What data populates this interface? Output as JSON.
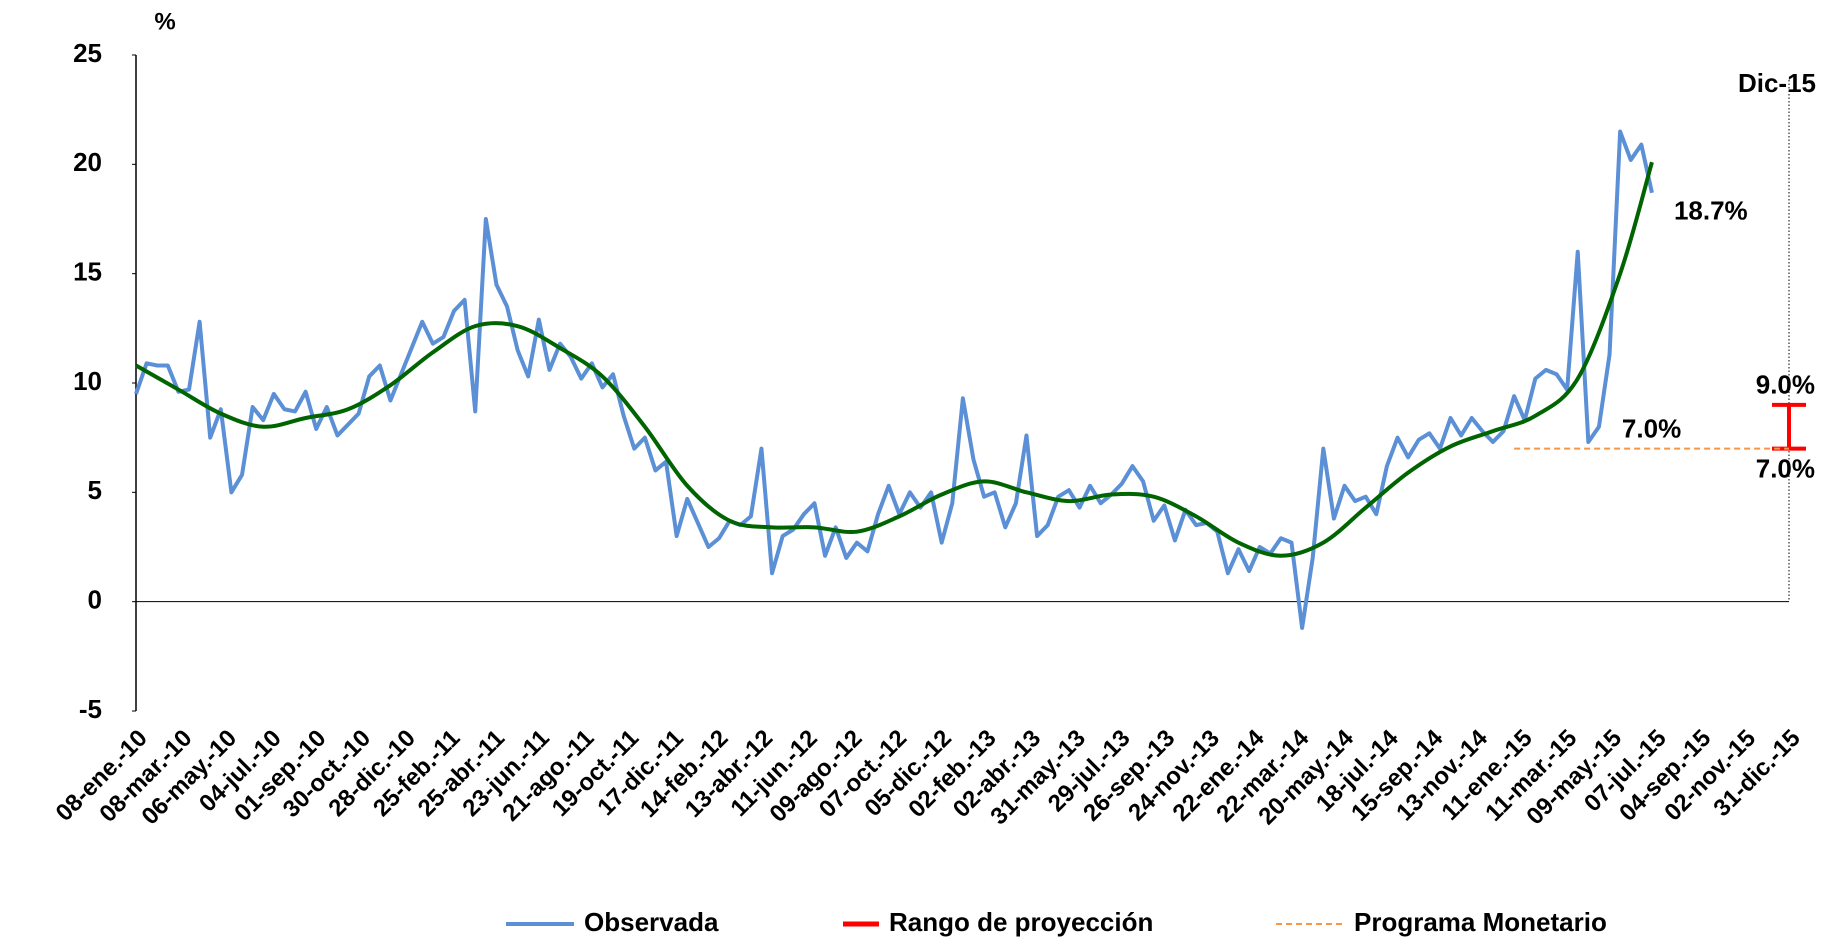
{
  "chart_data": {
    "type": "line",
    "y_label": "%",
    "ylim": [
      -5,
      25
    ],
    "yticks": [
      -5,
      0,
      5,
      10,
      15,
      20,
      25
    ],
    "xlim": [
      "2010-01-08",
      "2015-12-31"
    ],
    "xticks": [
      {
        "value": "2010-01-08",
        "label": "08-ene.-10"
      },
      {
        "value": "2010-03-08",
        "label": "08-mar.-10"
      },
      {
        "value": "2010-05-06",
        "label": "06-may.-10"
      },
      {
        "value": "2010-07-04",
        "label": "04-jul.-10"
      },
      {
        "value": "2010-09-01",
        "label": "01-sep.-10"
      },
      {
        "value": "2010-10-30",
        "label": "30-oct.-10"
      },
      {
        "value": "2010-12-28",
        "label": "28-dic.-10"
      },
      {
        "value": "2011-02-25",
        "label": "25-feb.-11"
      },
      {
        "value": "2011-04-25",
        "label": "25-abr.-11"
      },
      {
        "value": "2011-06-23",
        "label": "23-jun.-11"
      },
      {
        "value": "2011-08-21",
        "label": "21-ago.-11"
      },
      {
        "value": "2011-10-19",
        "label": "19-oct.-11"
      },
      {
        "value": "2011-12-17",
        "label": "17-dic.-11"
      },
      {
        "value": "2012-02-14",
        "label": "14-feb.-12"
      },
      {
        "value": "2012-04-13",
        "label": "13-abr.-12"
      },
      {
        "value": "2012-06-11",
        "label": "11-jun.-12"
      },
      {
        "value": "2012-08-09",
        "label": "09-ago.-12"
      },
      {
        "value": "2012-10-07",
        "label": "07-oct.-12"
      },
      {
        "value": "2012-12-05",
        "label": "05-dic.-12"
      },
      {
        "value": "2013-02-02",
        "label": "02-feb.-13"
      },
      {
        "value": "2013-04-02",
        "label": "02-abr.-13"
      },
      {
        "value": "2013-05-31",
        "label": "31-may.-13"
      },
      {
        "value": "2013-07-29",
        "label": "29-jul.-13"
      },
      {
        "value": "2013-09-26",
        "label": "26-sep.-13"
      },
      {
        "value": "2013-11-24",
        "label": "24-nov.-13"
      },
      {
        "value": "2014-01-22",
        "label": "22-ene.-14"
      },
      {
        "value": "2014-03-22",
        "label": "22-mar.-14"
      },
      {
        "value": "2014-05-20",
        "label": "20-may.-14"
      },
      {
        "value": "2014-07-18",
        "label": "18-jul.-14"
      },
      {
        "value": "2014-09-15",
        "label": "15-sep.-14"
      },
      {
        "value": "2014-11-13",
        "label": "13-nov.-14"
      },
      {
        "value": "2015-01-11",
        "label": "11-ene.-15"
      },
      {
        "value": "2015-03-11",
        "label": "11-mar.-15"
      },
      {
        "value": "2015-05-09",
        "label": "09-may.-15"
      },
      {
        "value": "2015-07-07",
        "label": "07-jul.-15"
      },
      {
        "value": "2015-09-04",
        "label": "04-sep.-15"
      },
      {
        "value": "2015-11-02",
        "label": "02-nov.-15"
      },
      {
        "value": "2015-12-31",
        "label": "31-dic.-15"
      }
    ],
    "marker": {
      "x": "2015-12-31",
      "label": "Dic-15"
    },
    "series": [
      {
        "name": "Observada",
        "type": "line",
        "color": "#5b8fd6",
        "end_label": "18.7%",
        "x": [
          "2010-01-08",
          "2010-01-22",
          "2010-02-05",
          "2010-02-19",
          "2010-03-05",
          "2010-03-19",
          "2010-04-02",
          "2010-04-16",
          "2010-04-30",
          "2010-05-14",
          "2010-05-28",
          "2010-06-11",
          "2010-06-25",
          "2010-07-09",
          "2010-07-23",
          "2010-08-06",
          "2010-08-20",
          "2010-09-03",
          "2010-09-17",
          "2010-10-01",
          "2010-10-15",
          "2010-10-29",
          "2010-11-12",
          "2010-11-26",
          "2010-12-10",
          "2010-12-24",
          "2011-01-07",
          "2011-01-21",
          "2011-02-04",
          "2011-02-18",
          "2011-03-04",
          "2011-03-18",
          "2011-04-01",
          "2011-04-15",
          "2011-04-29",
          "2011-05-13",
          "2011-05-27",
          "2011-06-10",
          "2011-06-24",
          "2011-07-08",
          "2011-07-22",
          "2011-08-05",
          "2011-08-19",
          "2011-09-02",
          "2011-09-16",
          "2011-09-30",
          "2011-10-14",
          "2011-10-28",
          "2011-11-11",
          "2011-11-25",
          "2011-12-09",
          "2011-12-23",
          "2012-01-06",
          "2012-01-20",
          "2012-02-03",
          "2012-02-17",
          "2012-03-02",
          "2012-03-16",
          "2012-03-30",
          "2012-04-13",
          "2012-04-27",
          "2012-05-11",
          "2012-05-25",
          "2012-06-08",
          "2012-06-22",
          "2012-07-06",
          "2012-07-20",
          "2012-08-03",
          "2012-08-17",
          "2012-08-31",
          "2012-09-14",
          "2012-09-28",
          "2012-10-12",
          "2012-10-26",
          "2012-11-09",
          "2012-11-23",
          "2012-12-07",
          "2012-12-21",
          "2013-01-04",
          "2013-01-18",
          "2013-02-01",
          "2013-02-15",
          "2013-03-01",
          "2013-03-15",
          "2013-03-29",
          "2013-04-12",
          "2013-04-26",
          "2013-05-10",
          "2013-05-24",
          "2013-06-07",
          "2013-06-21",
          "2013-07-05",
          "2013-07-19",
          "2013-08-02",
          "2013-08-16",
          "2013-08-30",
          "2013-09-13",
          "2013-09-27",
          "2013-10-11",
          "2013-10-25",
          "2013-11-08",
          "2013-11-22",
          "2013-12-06",
          "2013-12-20",
          "2014-01-03",
          "2014-01-17",
          "2014-01-31",
          "2014-02-14",
          "2014-02-28",
          "2014-03-14",
          "2014-03-28",
          "2014-04-11",
          "2014-04-25",
          "2014-05-09",
          "2014-05-23",
          "2014-06-06",
          "2014-06-20",
          "2014-07-04",
          "2014-07-18",
          "2014-08-01",
          "2014-08-15",
          "2014-08-29",
          "2014-09-12",
          "2014-09-26",
          "2014-10-10",
          "2014-10-24",
          "2014-11-07",
          "2014-11-21",
          "2014-12-05",
          "2014-12-19",
          "2015-01-02",
          "2015-01-16",
          "2015-01-30",
          "2015-02-13",
          "2015-02-27",
          "2015-03-13",
          "2015-03-27",
          "2015-04-10",
          "2015-04-24",
          "2015-05-08",
          "2015-05-22",
          "2015-06-05",
          "2015-06-19",
          "2015-07-03"
        ],
        "values": [
          9.5,
          10.9,
          10.8,
          10.8,
          9.6,
          9.7,
          12.8,
          7.5,
          8.8,
          5.0,
          5.8,
          8.9,
          8.3,
          9.5,
          8.8,
          8.7,
          9.6,
          7.9,
          8.9,
          7.6,
          8.1,
          8.6,
          10.3,
          10.8,
          9.2,
          10.4,
          11.6,
          12.8,
          11.8,
          12.1,
          13.3,
          13.8,
          8.7,
          17.5,
          14.5,
          13.5,
          11.5,
          10.3,
          12.9,
          10.6,
          11.8,
          11.2,
          10.2,
          10.9,
          9.8,
          10.4,
          8.5,
          7.0,
          7.5,
          6.0,
          6.4,
          3.0,
          4.7,
          3.6,
          2.5,
          2.9,
          3.7,
          3.5,
          3.9,
          7.0,
          1.3,
          3.0,
          3.3,
          4.0,
          4.5,
          2.1,
          3.4,
          2.0,
          2.7,
          2.3,
          4.0,
          5.3,
          4.0,
          5.0,
          4.3,
          5.0,
          2.7,
          4.5,
          9.3,
          6.5,
          4.8,
          5.0,
          3.4,
          4.5,
          7.6,
          3.0,
          3.5,
          4.8,
          5.1,
          4.3,
          5.3,
          4.5,
          4.9,
          5.4,
          6.2,
          5.5,
          3.7,
          4.4,
          2.8,
          4.2,
          3.5,
          3.6,
          3.2,
          1.3,
          2.4,
          1.4,
          2.5,
          2.2,
          2.9,
          2.7,
          -1.2,
          2.0,
          7.0,
          3.8,
          5.3,
          4.6,
          4.8,
          4.0,
          6.2,
          7.5,
          6.6,
          7.4,
          7.7,
          7.0,
          8.4,
          7.6,
          8.4,
          7.8,
          7.3,
          7.8,
          9.4,
          8.3,
          10.2,
          10.6,
          10.4,
          9.7,
          16.0,
          7.3,
          8.0,
          11.3,
          21.5,
          20.2,
          20.9,
          18.7
        ]
      },
      {
        "type": "trend",
        "color": "#006400",
        "x": [
          "2010-01-08",
          "2010-03-05",
          "2010-04-30",
          "2010-06-25",
          "2010-08-20",
          "2010-10-15",
          "2010-12-10",
          "2011-02-04",
          "2011-04-01",
          "2011-05-27",
          "2011-07-22",
          "2011-09-16",
          "2011-11-11",
          "2012-01-06",
          "2012-03-02",
          "2012-04-27",
          "2012-06-22",
          "2012-08-17",
          "2012-10-12",
          "2012-12-07",
          "2013-02-01",
          "2013-03-29",
          "2013-05-24",
          "2013-07-19",
          "2013-09-13",
          "2013-11-08",
          "2014-01-03",
          "2014-02-28",
          "2014-04-25",
          "2014-06-20",
          "2014-08-15",
          "2014-10-10",
          "2014-12-05",
          "2015-01-30",
          "2015-03-27",
          "2015-05-22",
          "2015-07-03"
        ],
        "values": [
          10.8,
          9.7,
          8.6,
          8.0,
          8.4,
          8.8,
          9.9,
          11.4,
          12.6,
          12.6,
          11.6,
          10.3,
          8.0,
          5.3,
          3.7,
          3.4,
          3.4,
          3.2,
          3.9,
          4.9,
          5.5,
          5.0,
          4.6,
          4.9,
          4.8,
          3.9,
          2.7,
          2.1,
          2.7,
          4.3,
          5.9,
          7.1,
          7.8,
          8.5,
          10.2,
          15.0,
          20.1
        ]
      },
      {
        "name": "Rango de proyección",
        "type": "range",
        "color": "#ff0000",
        "x": [
          "2015-12-31",
          "2015-12-31"
        ],
        "values": [
          7.0,
          9.0
        ],
        "value_labels": [
          "7.0%",
          "9.0%"
        ]
      },
      {
        "name": "Programa Monetario",
        "type": "dashed",
        "color": "#f79646",
        "x": [
          "2015-01-02",
          "2015-12-31"
        ],
        "values": [
          7.0,
          7.0
        ],
        "label": "7.0%"
      }
    ]
  }
}
